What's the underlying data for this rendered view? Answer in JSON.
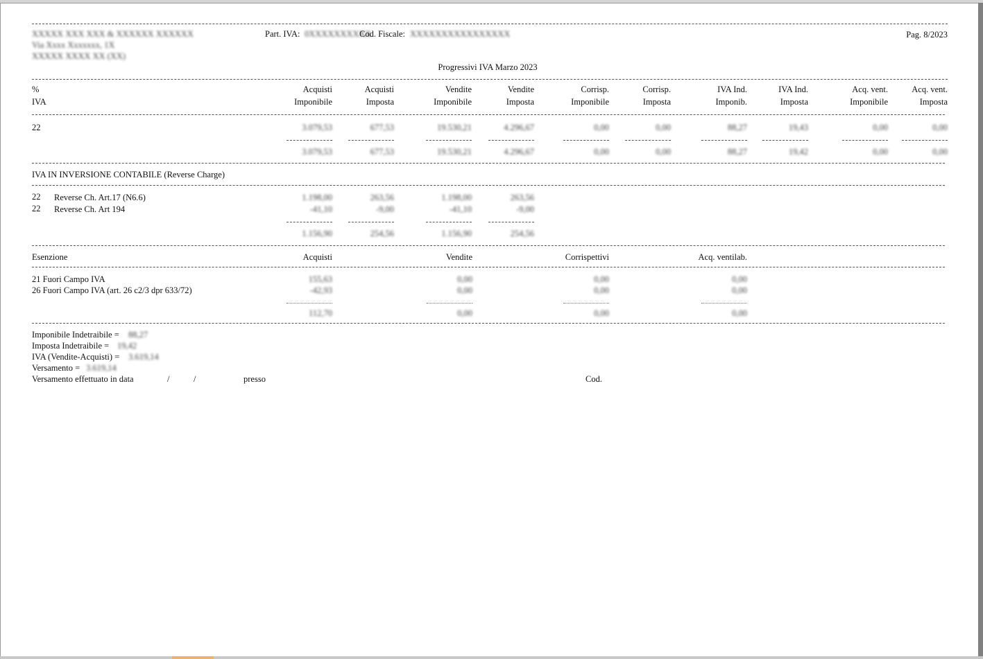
{
  "header": {
    "company_name": "XXXXX XXX XXX & XXXXXX XXXXXX",
    "address": "Via Xxxx Xxxxxxx, 1X",
    "city": "XXXXX XXXX XX (XX)",
    "piva_label": "Part. IVA:",
    "piva_value": "0XXXXXXXXXX",
    "cf_label": "Cod. Fiscale:",
    "cf_value": "XXXXXXXXXXXXXXXX",
    "page": "Pag. 8/2023"
  },
  "report_title": "Progressivi IVA Marzo 2023",
  "columns": {
    "pct_top": "%",
    "pct_bottom": "IVA",
    "items": [
      {
        "top": "Acquisti",
        "bottom": "Imponibile"
      },
      {
        "top": "Acquisti",
        "bottom": "Imposta"
      },
      {
        "top": "Vendite",
        "bottom": "Imponibile"
      },
      {
        "top": "Vendite",
        "bottom": "Imposta"
      },
      {
        "top": "Corrisp.",
        "bottom": "Imponibile"
      },
      {
        "top": "Corrisp.",
        "bottom": "Imposta"
      },
      {
        "top": "IVA Ind.",
        "bottom": "Imponib."
      },
      {
        "top": "IVA Ind.",
        "bottom": "Imposta"
      },
      {
        "top": "Acq. vent.",
        "bottom": "Imponibile"
      },
      {
        "top": "Acq. vent.",
        "bottom": "Imposta"
      }
    ]
  },
  "main_row": {
    "rate": "22",
    "values": [
      "3.079,53",
      "677,53",
      "19.530,21",
      "4.296,67",
      "0,00",
      "0,00",
      "88,27",
      "19,43",
      "0,00",
      "0,00"
    ],
    "totals": [
      "3.079,53",
      "677,53",
      "19.530,21",
      "4.296,67",
      "0,00",
      "0,00",
      "88,27",
      "19,42",
      "0,00",
      "0,00"
    ],
    "separator": "--------------"
  },
  "reverse_charge": {
    "title": "IVA IN INVERSIONE CONTABILE (Reverse Charge)",
    "rows": [
      {
        "rate": "22",
        "label": "Reverse Ch. Art.17 (N6.6)",
        "values": [
          "1.198,00",
          "263,56",
          "1.198,00",
          "263,56"
        ]
      },
      {
        "rate": "22",
        "label": "Reverse Ch. Art 194",
        "values": [
          "-41,10",
          "-9,00",
          "-41,10",
          "-9,00"
        ]
      }
    ],
    "totals": [
      "1.156,90",
      "254,56",
      "1.156,90",
      "254,56"
    ]
  },
  "exemption": {
    "headers": [
      "Esenzione",
      "Acquisti",
      "Vendite",
      "Corrispettivi",
      "Acq. ventilab."
    ],
    "rows": [
      {
        "label": "21 Fuori Campo IVA",
        "values": [
          "155,63",
          "0,00",
          "0,00",
          "0,00"
        ]
      },
      {
        "label": "26 Fuori Campo IVA (art. 26 c2/3 dpr 633/72)",
        "values": [
          "-42,93",
          "0,00",
          "0,00",
          "0,00"
        ]
      }
    ],
    "totals": [
      "112,70",
      "0,00",
      "0,00",
      "0,00"
    ]
  },
  "summary": {
    "imponibile_label": "Imponibile Indetraibile =",
    "imponibile_value": "88,27",
    "imposta_label": "Imposta Indetraibile =",
    "imposta_value": "19,42",
    "iva_label": "IVA (Vendite-Acquisti) =",
    "iva_value": "3.619,14",
    "versamento_label": "Versamento =",
    "versamento_value": "3.619,14",
    "effettuato_label": "Versamento effettuato in data",
    "slash1": "/",
    "slash2": "/",
    "presso_label": "presso",
    "cod_label": "Cod."
  }
}
